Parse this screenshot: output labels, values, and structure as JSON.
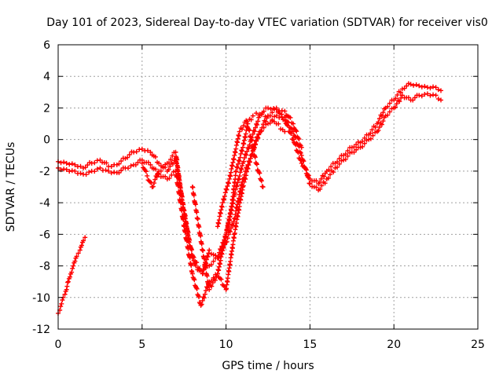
{
  "chart_data": {
    "type": "scatter",
    "title": "Day 101 of 2023, Sidereal Day-to-day VTEC variation (SDTVAR) for receiver vis0",
    "xlabel": "GPS time / hours",
    "ylabel": "SDTVAR / TECUs",
    "xlim": [
      0,
      25
    ],
    "ylim": [
      -12,
      6
    ],
    "xticks": [
      "0",
      "5",
      "10",
      "15",
      "20",
      "25"
    ],
    "yticks": [
      "-12",
      "-10",
      "-8",
      "-6",
      "-4",
      "-2",
      "0",
      "2",
      "4",
      "6"
    ],
    "grid": true,
    "marker_color": "#ff0000",
    "series": [
      {
        "x": [
          0.0,
          0.5,
          1.0,
          1.5,
          2.0,
          2.5,
          3.0,
          3.5,
          4.0,
          4.5,
          5.0,
          5.5,
          6.0,
          6.5,
          7.0,
          7.5,
          8.0,
          8.5,
          9.0,
          9.5,
          10.0,
          10.5,
          11.0,
          11.5,
          12.0,
          12.5,
          13.0,
          13.5,
          14.0,
          14.5,
          15.0,
          15.5,
          16.0,
          16.5,
          17.0,
          17.5,
          18.0,
          18.5,
          19.0,
          19.5,
          20.0,
          20.5,
          21.0,
          21.5,
          22.0,
          22.5,
          22.8
        ],
        "y": [
          -1.4,
          -1.5,
          -1.6,
          -1.8,
          -1.5,
          -1.3,
          -1.7,
          -1.6,
          -1.2,
          -0.8,
          -0.6,
          -0.8,
          -1.5,
          -2.0,
          -1.2,
          -4.5,
          -7.5,
          -8.3,
          -8.0,
          -7.5,
          -6.0,
          -3.5,
          -1.5,
          0.0,
          1.5,
          2.0,
          1.9,
          1.2,
          0.0,
          -1.5,
          -2.5,
          -2.8,
          -2.0,
          -1.5,
          -1.0,
          -0.5,
          -0.2,
          0.3,
          1.0,
          2.0,
          2.5,
          3.2,
          3.5,
          3.4,
          3.3,
          3.3,
          3.1
        ]
      },
      {
        "x": [
          0.0,
          0.5,
          1.0,
          1.5,
          2.0,
          2.5,
          3.0,
          3.5,
          4.0,
          4.5,
          5.0,
          5.5,
          6.0,
          6.5,
          7.0,
          7.5,
          8.0,
          8.5,
          9.0,
          9.5,
          10.0,
          10.5,
          11.0,
          11.5,
          12.0,
          12.5,
          13.0,
          13.5,
          14.0,
          14.5,
          15.0,
          15.5,
          16.0,
          16.5,
          17.0,
          17.5,
          18.0,
          18.5,
          19.0,
          19.5,
          20.0,
          20.5,
          21.0,
          21.5,
          22.0,
          22.5,
          22.8
        ],
        "y": [
          -1.8,
          -1.9,
          -2.0,
          -2.2,
          -2.0,
          -1.8,
          -2.0,
          -2.1,
          -1.8,
          -1.6,
          -1.3,
          -1.6,
          -2.2,
          -2.5,
          -2.0,
          -5.5,
          -8.5,
          -10.5,
          -9.0,
          -8.5,
          -9.5,
          -6.0,
          -3.0,
          -1.0,
          0.5,
          1.0,
          1.5,
          1.4,
          0.5,
          -1.0,
          -2.8,
          -3.2,
          -2.5,
          -1.8,
          -1.3,
          -0.8,
          -0.5,
          0.0,
          0.5,
          1.5,
          2.0,
          2.8,
          2.5,
          2.8,
          2.9,
          2.8,
          2.5
        ]
      },
      {
        "x": [
          5.0,
          5.3,
          5.6,
          6.0,
          6.5,
          7.0,
          7.4,
          7.8,
          8.2,
          8.6,
          9.0,
          9.5,
          10.0,
          10.5,
          11.0,
          11.5,
          12.0,
          12.5,
          13.0,
          13.5,
          14.0,
          14.5
        ],
        "y": [
          -1.5,
          -2.3,
          -3.0,
          -2.0,
          -1.5,
          -0.8,
          -4.0,
          -6.5,
          -8.0,
          -8.5,
          -7.0,
          -7.5,
          -6.5,
          -5.0,
          -2.5,
          -1.0,
          0.5,
          1.5,
          2.0,
          1.8,
          1.0,
          -0.5
        ]
      },
      {
        "x": [
          8.0,
          8.3,
          8.6,
          9.0,
          9.5,
          10.0,
          10.3,
          10.6,
          11.0,
          11.3,
          11.6,
          12.0,
          12.5,
          13.0,
          13.5
        ],
        "y": [
          -3.0,
          -5.0,
          -7.0,
          -9.5,
          -8.5,
          -6.0,
          -4.5,
          -2.0,
          -0.5,
          1.0,
          1.5,
          1.6,
          1.5,
          1.0,
          0.5
        ]
      },
      {
        "x": [
          9.5,
          9.8,
          10.2,
          10.5,
          10.8,
          11.2,
          11.5,
          11.8,
          12.2
        ],
        "y": [
          -5.5,
          -4.0,
          -2.5,
          -1.0,
          0.5,
          1.2,
          0.0,
          -1.5,
          -3.0
        ]
      },
      {
        "x": [
          0.0,
          0.1,
          0.2,
          0.3,
          0.4,
          0.5,
          0.6,
          0.7,
          0.8,
          0.9,
          1.0,
          1.1,
          1.2,
          1.3,
          1.4,
          1.5,
          1.6
        ],
        "y": [
          -11.0,
          -10.8,
          -10.4,
          -10.0,
          -9.8,
          -9.5,
          -9.0,
          -8.7,
          -8.4,
          -8.0,
          -7.7,
          -7.4,
          -7.2,
          -7.0,
          -6.7,
          -6.4,
          -6.2
        ]
      }
    ]
  }
}
